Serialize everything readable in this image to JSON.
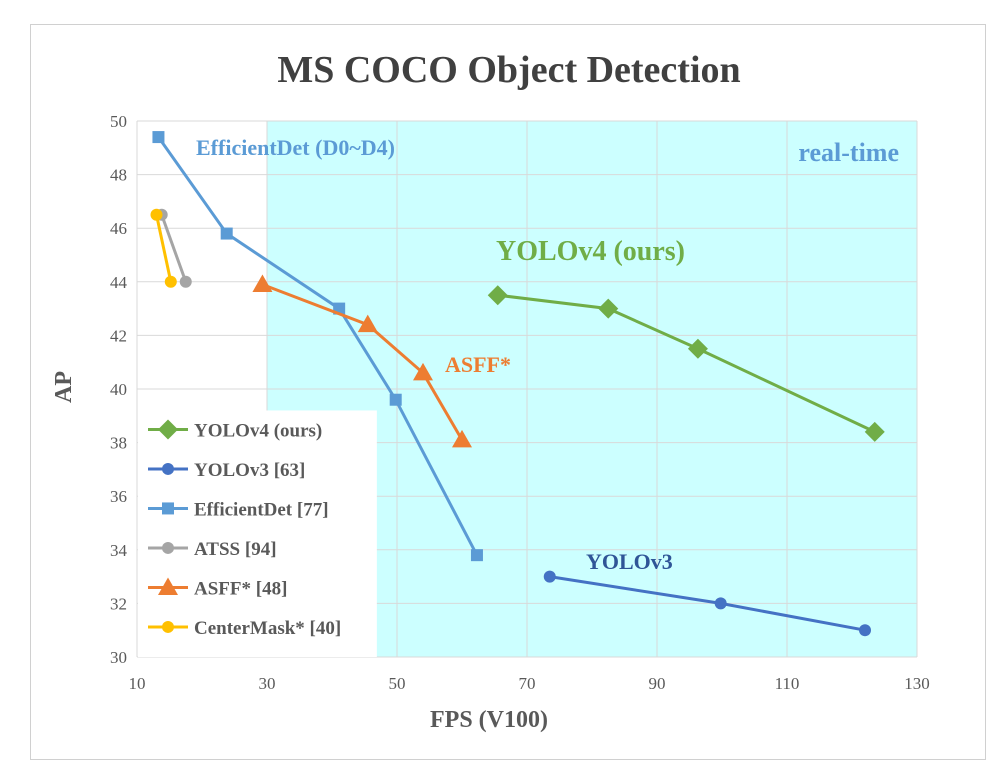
{
  "chart_data": {
    "type": "line",
    "title": "MS COCO Object Detection",
    "xlabel": "FPS (V100)",
    "ylabel": "AP",
    "xlim": [
      10,
      130
    ],
    "ylim": [
      30,
      50
    ],
    "x_ticks": [
      10,
      30,
      50,
      70,
      90,
      110,
      130
    ],
    "y_ticks": [
      30,
      32,
      34,
      36,
      38,
      40,
      42,
      44,
      46,
      48,
      50
    ],
    "grid": true,
    "legend_position": "bottom-left",
    "region": {
      "label": "real-time",
      "x_from": 30,
      "x_to": 130,
      "color": "#ccffff"
    },
    "series": [
      {
        "name": "YOLOv4 (ours)",
        "marker": "diamond",
        "color": "#70ad47",
        "x": [
          65.5,
          82.5,
          96.3,
          123.5
        ],
        "y": [
          43.5,
          43.0,
          41.5,
          38.4
        ]
      },
      {
        "name": "YOLOv3 [63]",
        "marker": "circle",
        "color": "#4472c4",
        "x": [
          73.5,
          99.8,
          122.0
        ],
        "y": [
          33.0,
          32.0,
          31.0
        ]
      },
      {
        "name": "EfficientDet [77]",
        "marker": "square",
        "color": "#5b9bd5",
        "x": [
          13.3,
          23.8,
          41.1,
          49.8,
          62.3
        ],
        "y": [
          49.4,
          45.8,
          43.0,
          39.6,
          33.8
        ]
      },
      {
        "name": "ATSS [94]",
        "marker": "circle",
        "color": "#a5a5a5",
        "x": [
          13.8,
          17.5
        ],
        "y": [
          46.5,
          44.0
        ]
      },
      {
        "name": "ASFF* [48]",
        "marker": "triangle",
        "color": "#ed7d31",
        "x": [
          29.3,
          45.5,
          54.0,
          60.0
        ],
        "y": [
          43.9,
          42.4,
          40.6,
          38.1
        ]
      },
      {
        "name": "CenterMask* [40]",
        "marker": "circle",
        "color": "#ffc000",
        "x": [
          13.0,
          15.2
        ],
        "y": [
          46.5,
          44.0
        ]
      }
    ],
    "annotations": [
      {
        "text": "EfficientDet (D0~D4)",
        "color": "#5b9bd5"
      },
      {
        "text": "real-time",
        "color": "#5b9bd5"
      },
      {
        "text": "YOLOv4 (ours)",
        "color": "#70ad47"
      },
      {
        "text": "ASFF*",
        "color": "#ed7d31"
      },
      {
        "text": "YOLOv3",
        "color": "#2f5597"
      }
    ]
  }
}
